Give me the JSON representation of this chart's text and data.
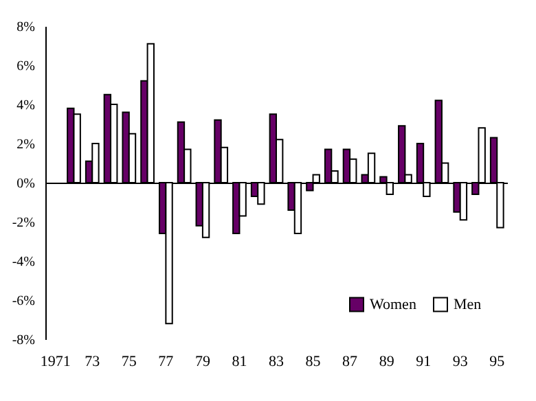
{
  "chart_data": {
    "type": "bar",
    "categories": [
      "1971",
      null,
      "73",
      null,
      "75",
      null,
      "77",
      null,
      "79",
      null,
      "81",
      null,
      "83",
      null,
      "85",
      null,
      "87",
      null,
      "89",
      null,
      "91",
      null,
      "93",
      null,
      "95"
    ],
    "series": [
      {
        "name": "Women",
        "color": "#660066",
        "values": [
          null,
          3.8,
          1.1,
          4.5,
          3.6,
          5.2,
          -2.6,
          3.1,
          -2.2,
          3.2,
          -2.6,
          -0.7,
          3.5,
          -1.4,
          -0.4,
          1.7,
          1.7,
          0.4,
          0.3,
          2.9,
          2.0,
          4.2,
          -1.5,
          -0.6,
          2.3
        ]
      },
      {
        "name": "Men",
        "color": "#ffffff",
        "values": [
          null,
          3.5,
          2.0,
          4.0,
          2.5,
          7.1,
          -7.2,
          1.7,
          -2.8,
          1.8,
          -1.7,
          -1.1,
          2.2,
          -2.6,
          0.4,
          0.6,
          1.2,
          1.5,
          -0.6,
          0.4,
          -0.7,
          1.0,
          -1.9,
          2.8,
          -2.3
        ]
      }
    ],
    "ylim": [
      -8,
      8
    ],
    "yticks": [
      {
        "value": -8,
        "label": "-8%"
      },
      {
        "value": -6,
        "label": "-6%"
      },
      {
        "value": -4,
        "label": "-4%"
      },
      {
        "value": -2,
        "label": "-2%"
      },
      {
        "value": 0,
        "label": "0%"
      },
      {
        "value": 2,
        "label": "2%"
      },
      {
        "value": 4,
        "label": "4%"
      },
      {
        "value": 6,
        "label": "6%"
      },
      {
        "value": 8,
        "label": "8%"
      }
    ],
    "legend": "bottom right"
  }
}
